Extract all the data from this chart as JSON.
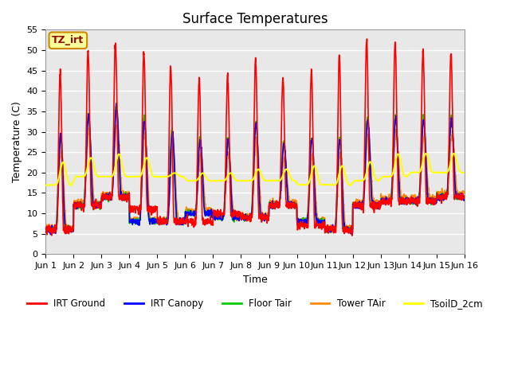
{
  "title": "Surface Temperatures",
  "xlabel": "Time",
  "ylabel": "Temperature (C)",
  "ylim": [
    0,
    55
  ],
  "yticks": [
    0,
    5,
    10,
    15,
    20,
    25,
    30,
    35,
    40,
    45,
    50,
    55
  ],
  "x_labels": [
    "Jun 1",
    "Jun 2",
    "Jun 3",
    "Jun 4",
    "Jun 5",
    "Jun 6",
    "Jun 7",
    "Jun 8",
    "Jun 9",
    "Jun 10",
    "Jun 11",
    "Jun 12",
    "Jun 13",
    "Jun 14",
    "Jun 15",
    "Jun 16"
  ],
  "series": {
    "IRT Ground": {
      "color": "#ff0000",
      "lw": 1.2
    },
    "IRT Canopy": {
      "color": "#0000ff",
      "lw": 1.2
    },
    "Floor Tair": {
      "color": "#00cc00",
      "lw": 1.2
    },
    "Tower TAir": {
      "color": "#ff8800",
      "lw": 1.2
    },
    "TsoilD_2cm": {
      "color": "#ffff00",
      "lw": 1.5
    }
  },
  "annotation_text": "TZ_irt",
  "annotation_bg": "#ffff99",
  "annotation_border": "#cc8800",
  "background_color": "#e8e8e8",
  "title_fontsize": 12,
  "axis_label_fontsize": 9,
  "tick_fontsize": 8
}
